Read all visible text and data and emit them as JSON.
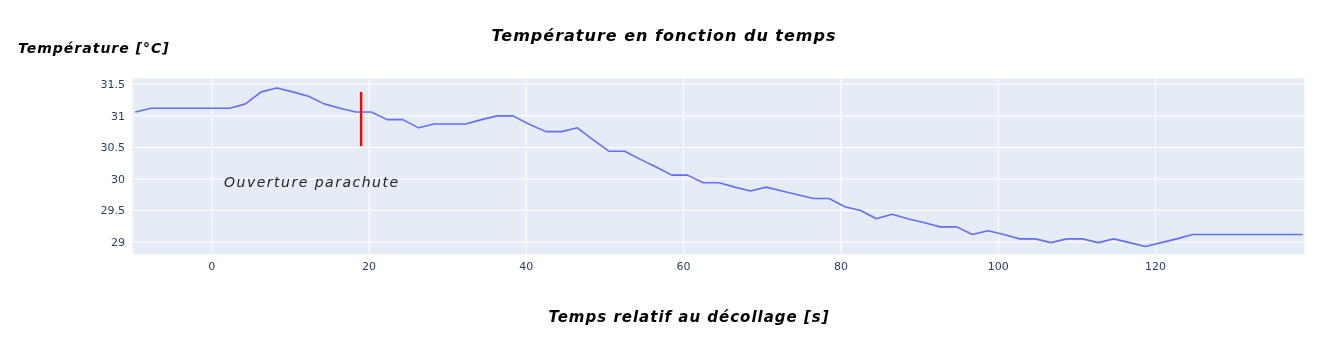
{
  "chart_data": {
    "type": "line",
    "title": "Température en fonction du temps",
    "xlabel": "Temps relatif au décollage [s]",
    "ylabel": "Température [°C]",
    "x": [
      -9.7,
      -7.7,
      -5.7,
      -3.7,
      -1.7,
      0.3,
      2.3,
      4.3,
      6.3,
      8.3,
      10.3,
      12.3,
      14.3,
      16.3,
      18.3,
      20.3,
      22.3,
      24.3,
      26.3,
      28.3,
      30.3,
      32.3,
      34.3,
      36.3,
      38.3,
      40.3,
      42.5,
      44.5,
      46.5,
      48.5,
      50.5,
      52.5,
      54.5,
      56.5,
      58.5,
      60.5,
      62.5,
      64.5,
      66.5,
      68.5,
      70.5,
      72.5,
      74.5,
      76.5,
      78.5,
      80.5,
      82.5,
      84.5,
      86.5,
      88.5,
      90.5,
      92.6,
      94.7,
      96.7,
      98.7,
      100.7,
      102.7,
      104.7,
      106.7,
      108.7,
      110.7,
      112.7,
      114.7,
      116.7,
      118.7,
      120.7,
      122.7,
      124.7,
      126.7,
      128.7,
      130.7,
      132.7,
      134.7,
      136.7,
      138.7
    ],
    "series": [
      {
        "color": "#636efa",
        "values": [
          31.06,
          31.12,
          31.12,
          31.12,
          31.12,
          31.12,
          31.12,
          31.19,
          31.38,
          31.44,
          31.38,
          31.31,
          31.19,
          31.12,
          31.06,
          31.06,
          30.94,
          30.94,
          30.81,
          30.87,
          30.87,
          30.87,
          30.94,
          31.0,
          31.0,
          30.87,
          30.75,
          30.75,
          30.81,
          30.62,
          30.44,
          30.44,
          30.31,
          30.19,
          30.06,
          30.06,
          29.94,
          29.94,
          29.87,
          29.81,
          29.87,
          29.81,
          29.75,
          29.69,
          29.69,
          29.56,
          29.5,
          29.37,
          29.44,
          29.37,
          29.31,
          29.24,
          29.24,
          29.12,
          29.18,
          29.12,
          29.05,
          29.05,
          28.99,
          29.05,
          29.05,
          28.99,
          29.05,
          28.99,
          28.93,
          28.99,
          29.05,
          29.12,
          29.12,
          29.12,
          29.12,
          29.12,
          29.12,
          29.12,
          29.12
        ]
      },
      {
        "color": "#ff0000",
        "x": [
          19,
          19
        ],
        "values": [
          30.52,
          31.38
        ]
      }
    ],
    "annotations": [
      "Ouverture parachute"
    ],
    "xlim": [
      -10,
      139
    ],
    "xticks": [
      0,
      20,
      40,
      60,
      80,
      100,
      120
    ],
    "ylim": [
      28.81,
      31.6
    ],
    "yticks": [
      29,
      29.5,
      30,
      30.5,
      31,
      31.5
    ],
    "grid": true
  }
}
